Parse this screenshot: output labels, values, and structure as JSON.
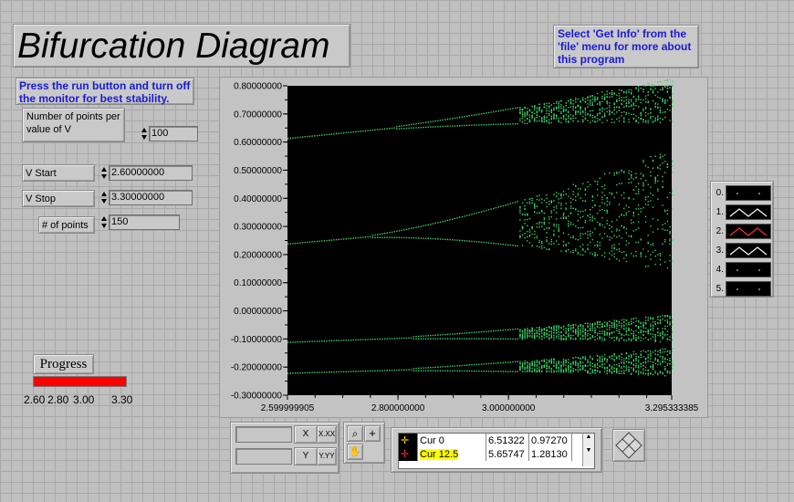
{
  "title": "Bifurcation Diagram",
  "info_note": "Select 'Get Info' from the 'file' menu for more about this program",
  "instructions": "Press the run button and turn off the monitor for best stability.",
  "controls": {
    "points_label": "Number of points per value of V",
    "points_value": "100",
    "v_start_label": "V Start",
    "v_start_value": "2.60000000",
    "v_stop_label": "V Stop",
    "v_stop_value": "3.30000000",
    "num_points_label": "# of points",
    "num_points_value": "150"
  },
  "progress": {
    "label": "Progress",
    "value_fraction": 1.0,
    "fill_color": "#ff0000",
    "ticks": [
      "2.60",
      "2.80",
      "3.00",
      "3.30"
    ]
  },
  "chart_data": {
    "type": "scatter",
    "background": "#000000",
    "point_color": "#3fd26a",
    "xlim": [
      2.599999905,
      3.295333385
    ],
    "ylim": [
      -0.3,
      0.8
    ],
    "x_ticks": [
      "2.599999905",
      "2.800000000",
      "3.000000000",
      "3.295333385"
    ],
    "x_tick_values": [
      2.599999905,
      2.8,
      3.0,
      3.295333385
    ],
    "y_ticks": [
      "0.80000000",
      "0.70000000",
      "0.60000000",
      "0.50000000",
      "0.40000000",
      "0.30000000",
      "0.20000000",
      "0.10000000",
      "0.00000000",
      "-0.10000000",
      "-0.20000000",
      "-0.30000000"
    ],
    "y_tick_values": [
      0.8,
      0.7,
      0.6,
      0.5,
      0.4,
      0.3,
      0.2,
      0.1,
      0.0,
      -0.1,
      -0.2,
      -0.3
    ],
    "branches": [
      {
        "name": "",
        "start": [
          2.6,
          0.615
        ],
        "end": [
          3.295,
          0.75
        ],
        "spread_end": 0.08
      },
      {
        "name": "",
        "start": [
          2.6,
          0.24
        ],
        "end": [
          3.295,
          0.36
        ],
        "spread_end": 0.22
      },
      {
        "name": "",
        "start": [
          2.6,
          -0.11
        ],
        "end": [
          3.295,
          -0.06
        ],
        "spread_end": 0.05
      },
      {
        "name": "",
        "start": [
          2.6,
          -0.22
        ],
        "end": [
          3.295,
          -0.18
        ],
        "spread_end": 0.05
      }
    ]
  },
  "legend": {
    "items": [
      "0.",
      "1.",
      "2.",
      "3.",
      "4.",
      "5."
    ],
    "styles": [
      "dots",
      "zigzag-white",
      "zigzag-red",
      "zigzag-white",
      "dots",
      "dots"
    ]
  },
  "cursor_panel": {
    "rows": [
      {
        "name": "Cur 0",
        "x": "6.51322",
        "y": "0.97270",
        "highlight": false
      },
      {
        "name": "Cur 12.5",
        "x": "5.65747",
        "y": "1.28130",
        "highlight": true
      }
    ]
  },
  "scale_legend": {
    "x_format": "X.XX",
    "y_format": "Y.YY"
  }
}
